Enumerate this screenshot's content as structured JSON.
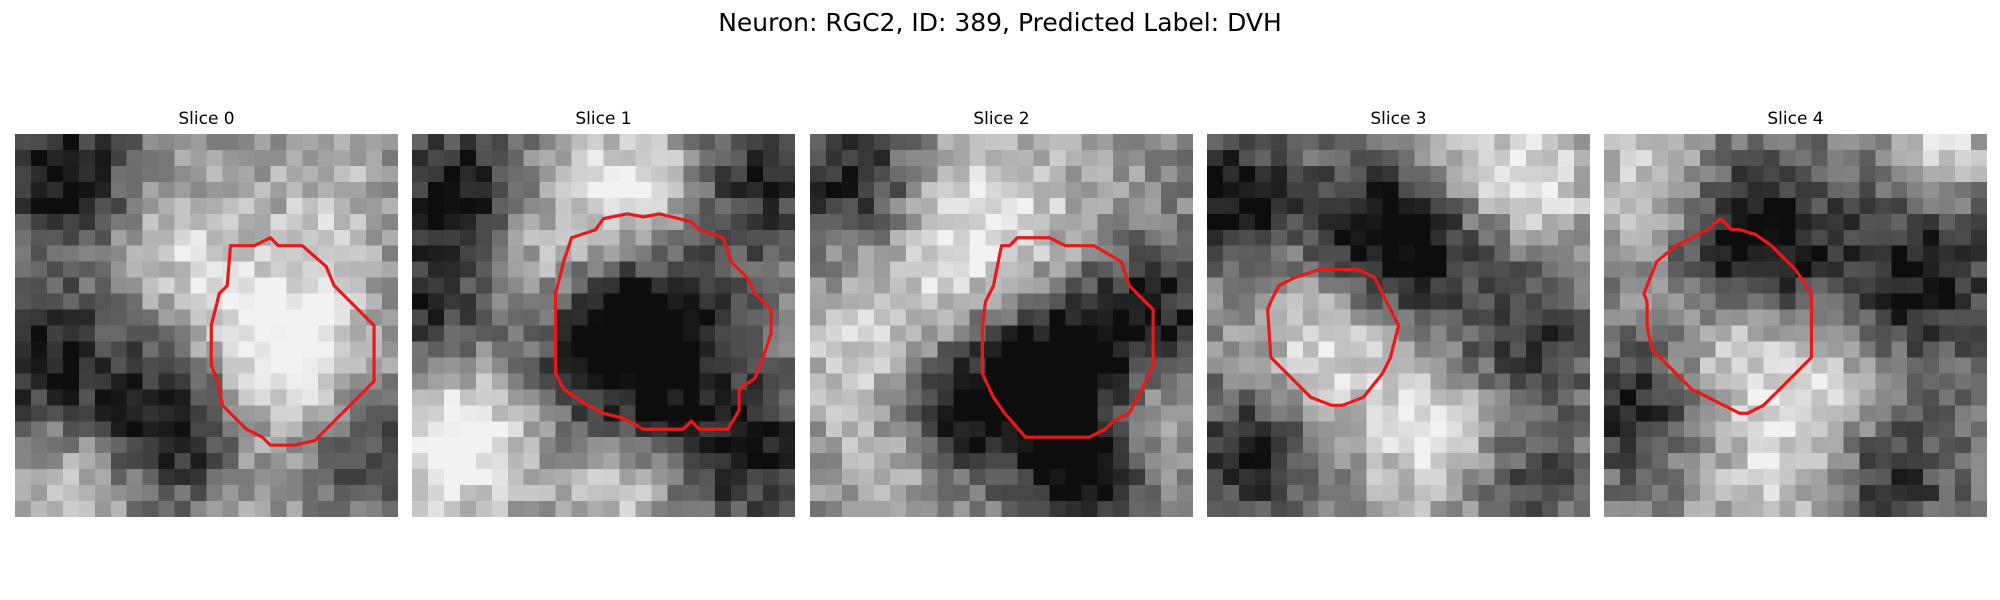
{
  "figure": {
    "title": "Neuron: RGC2, ID: 389, Predicted Label: DVH"
  },
  "colors": {
    "contour": "#e8191b",
    "background": "#ffffff",
    "image_colormap": "grayscale"
  },
  "panels": [
    {
      "title": "Slice 0"
    },
    {
      "title": "Slice 1"
    },
    {
      "title": "Slice 2"
    },
    {
      "title": "Slice 3"
    },
    {
      "title": "Slice 4"
    }
  ]
}
